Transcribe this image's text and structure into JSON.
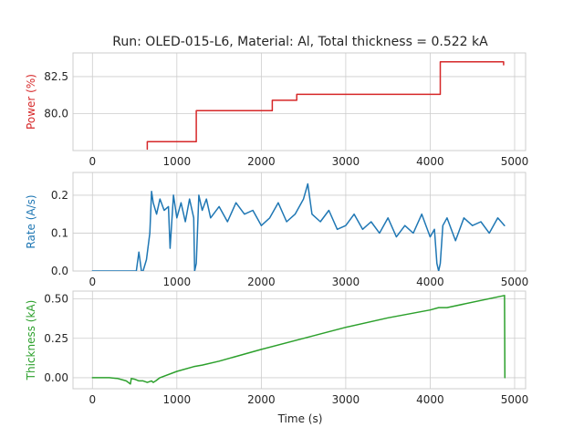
{
  "chart_data": {
    "type": "line",
    "title": "Run: OLED-015-L6, Material: Al, Total thickness = 0.522 kA",
    "xlabel": "Time (s)",
    "xlim": [
      -230,
      5130
    ],
    "xticks": [
      0,
      1000,
      2000,
      3000,
      4000,
      5000
    ],
    "grid": true,
    "panels": [
      {
        "ylabel": "Power (%)",
        "color": "#d62728",
        "ylim": [
          77.5,
          84.1
        ],
        "yticks": [
          80.0,
          82.5
        ],
        "ytick_labels": [
          "80.0",
          "82.5"
        ],
        "x": [
          650,
          650,
          1230,
          1230,
          2130,
          2130,
          2420,
          2420,
          4120,
          4120,
          4870,
          4870
        ],
        "y": [
          77.6,
          78.1,
          78.1,
          80.2,
          80.2,
          80.9,
          80.9,
          81.3,
          81.3,
          83.5,
          83.5,
          83.3
        ]
      },
      {
        "ylabel": "Rate (A/s)",
        "color": "#1f77b4",
        "ylim": [
          0,
          0.26
        ],
        "yticks": [
          0.0,
          0.1,
          0.2
        ],
        "ytick_labels": [
          "0.0",
          "0.1",
          "0.2"
        ],
        "x": [
          0,
          150,
          520,
          550,
          580,
          600,
          640,
          680,
          700,
          720,
          760,
          800,
          850,
          900,
          920,
          960,
          1000,
          1050,
          1100,
          1150,
          1200,
          1210,
          1230,
          1260,
          1300,
          1350,
          1400,
          1500,
          1600,
          1700,
          1800,
          1900,
          2000,
          2100,
          2200,
          2300,
          2400,
          2500,
          2550,
          2600,
          2700,
          2800,
          2900,
          3000,
          3100,
          3200,
          3300,
          3400,
          3500,
          3600,
          3700,
          3800,
          3900,
          3950,
          4000,
          4050,
          4080,
          4100,
          4120,
          4150,
          4200,
          4300,
          4400,
          4500,
          4600,
          4700,
          4800,
          4880
        ],
        "y": [
          0.0,
          0.0,
          0.0,
          0.05,
          0.0,
          0.0,
          0.03,
          0.1,
          0.21,
          0.18,
          0.15,
          0.19,
          0.16,
          0.17,
          0.06,
          0.2,
          0.14,
          0.18,
          0.13,
          0.19,
          0.14,
          0.0,
          0.02,
          0.2,
          0.16,
          0.19,
          0.14,
          0.17,
          0.13,
          0.18,
          0.15,
          0.16,
          0.12,
          0.14,
          0.18,
          0.13,
          0.15,
          0.19,
          0.23,
          0.15,
          0.13,
          0.16,
          0.11,
          0.12,
          0.15,
          0.11,
          0.13,
          0.1,
          0.14,
          0.09,
          0.12,
          0.1,
          0.15,
          0.12,
          0.09,
          0.11,
          0.02,
          0.0,
          0.02,
          0.12,
          0.14,
          0.08,
          0.14,
          0.12,
          0.13,
          0.1,
          0.14,
          0.12
        ]
      },
      {
        "ylabel": "Thickness (kA)",
        "color": "#2ca02c",
        "ylim": [
          -0.07,
          0.55
        ],
        "yticks": [
          0.0,
          0.25,
          0.5
        ],
        "ytick_labels": [
          "0.00",
          "0.25",
          "0.50"
        ],
        "x": [
          0,
          200,
          300,
          400,
          450,
          460,
          500,
          550,
          600,
          650,
          700,
          720,
          750,
          800,
          1000,
          1200,
          1300,
          1500,
          2000,
          2500,
          3000,
          3500,
          4000,
          4100,
          4200,
          4880,
          4885
        ],
        "y": [
          0.0,
          0.0,
          -0.005,
          -0.02,
          -0.04,
          -0.005,
          -0.01,
          -0.02,
          -0.02,
          -0.03,
          -0.02,
          -0.03,
          -0.02,
          0.0,
          0.04,
          0.07,
          0.08,
          0.105,
          0.18,
          0.25,
          0.32,
          0.38,
          0.43,
          0.445,
          0.445,
          0.522,
          0.0
        ]
      }
    ]
  }
}
